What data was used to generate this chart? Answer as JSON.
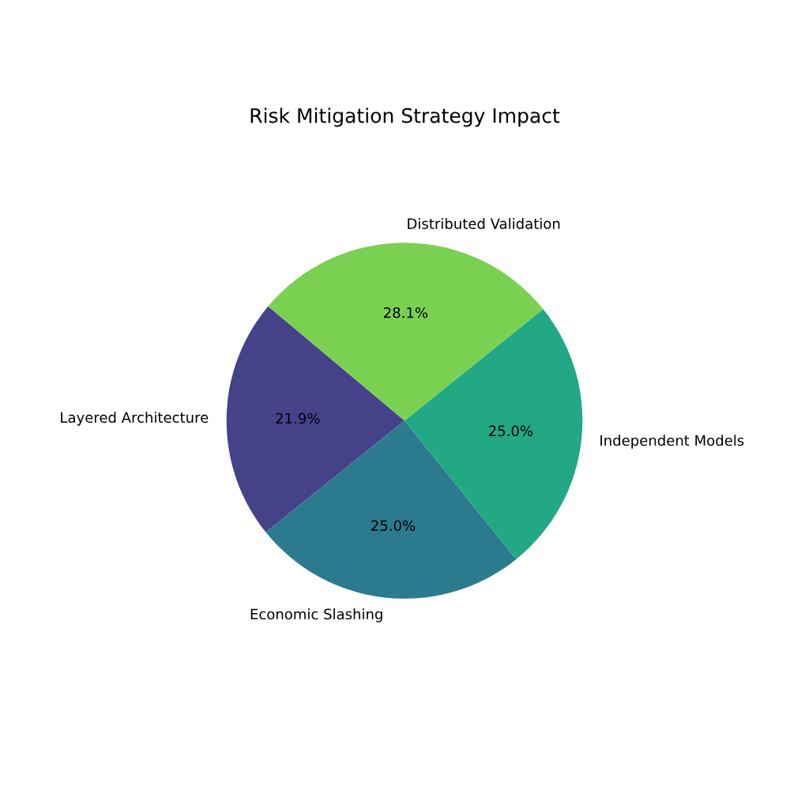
{
  "chart_data": {
    "type": "pie",
    "title": "Risk Mitigation Strategy Impact",
    "categories": [
      "Layered Architecture",
      "Economic Slashing",
      "Independent Models",
      "Distributed Validation"
    ],
    "values": [
      21.9,
      25.0,
      25.0,
      28.1
    ],
    "value_labels": [
      "21.9%",
      "25.0%",
      "25.0%",
      "28.1%"
    ],
    "colors": [
      "#46428a",
      "#2c7a8d",
      "#22a884",
      "#7ad151"
    ]
  }
}
